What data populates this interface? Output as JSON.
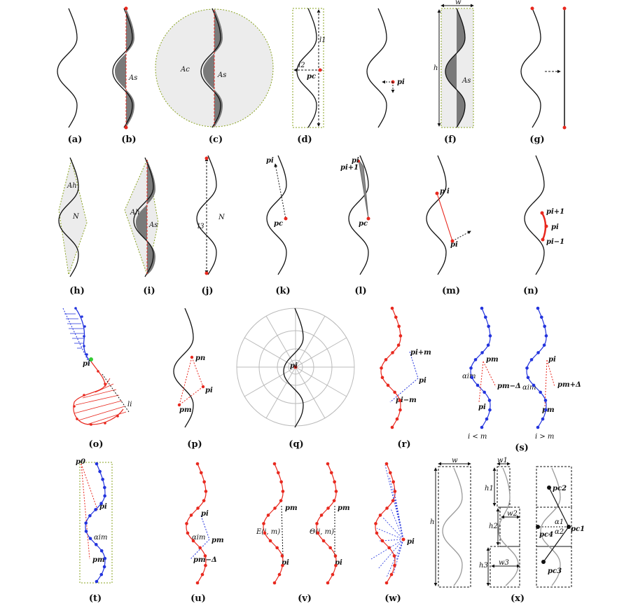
{
  "captions": [
    "(a)",
    "(b)",
    "(c)",
    "(d)",
    "(f)",
    "(g)",
    "(h)",
    "(i)",
    "(j)",
    "(k)",
    "(l)",
    "(m)",
    "(n)",
    "(o)",
    "(p)",
    "(q)",
    "(r)",
    "(s)",
    "(t)",
    "(u)",
    "(v)",
    "(w)",
    "(x)"
  ],
  "labels": {
    "b_as": "As",
    "c_ac": "Ac",
    "c_as": "As",
    "d_l1": "l1",
    "d_l2": "l2",
    "d_pc": "pc",
    "e_pi": "pi",
    "f_w": "w",
    "f_h": "h",
    "f_as": "As",
    "h_ah": "Ah",
    "h_n": "N",
    "i_ah": "Ah",
    "i_as": "As",
    "j_l3": "l3",
    "j_n": "N",
    "k_pi": "pi",
    "k_pc": "pc",
    "l_pi": "pi",
    "l_pi1": "pi+1",
    "l_pc": "pc",
    "m_pip": "p'i",
    "m_pi": "pi",
    "n_pi1": "pi+1",
    "n_pi": "pi",
    "n_pim1": "pi−1",
    "o_pi": "pi",
    "o_li": "li",
    "p_pn": "pn",
    "p_pi": "pi",
    "p_pm": "pm",
    "q_pi": "pi",
    "r_pim": "pi+m",
    "r_pi": "pi",
    "r_pimm": "pi−m",
    "s_pm": "pm",
    "s_alpha": "αim",
    "s_pmd": "pm−Δ",
    "s_pi": "pi",
    "s_iltm": "i < m",
    "s2_pi": "pi",
    "s2_alpha": "αim",
    "s2_pmd": "pm+Δ",
    "s2_pm": "pm",
    "s_igtm": "i > m",
    "t_p0": "p0",
    "t_pi": "pi",
    "t_alpha": "αim",
    "t_pm": "pm",
    "u_pi": "pi",
    "u_alpha": "αim",
    "u_pm": "pm",
    "u_pmd": "pm−Δ",
    "v_pm": "pm",
    "v_e": "E(i, m)",
    "v_pi": "pi",
    "v2_pm": "pm",
    "v2_theta": "Θ(i, m)",
    "v2_pi": "pi",
    "w_pi": "pi",
    "x_w": "w",
    "x_h": "h",
    "x_w1": "w1",
    "x_h1": "h1",
    "x_w2": "w2",
    "x_h2": "h2",
    "x_w3": "w3",
    "x_h3": "h3",
    "x_pc2": "pc2",
    "x_pc4": "pc4",
    "x_pc1": "pc1",
    "x_pc3": "pc3",
    "x_a1": "α1",
    "x_a2": "α2"
  },
  "colors": {
    "stroke": "#111111",
    "shade_dark": "#7a7a7a",
    "shade_light": "#ececec",
    "red": "#e8281e",
    "blue": "#2233dd",
    "green": "#8aa322",
    "grid": "#bbbbbb"
  }
}
